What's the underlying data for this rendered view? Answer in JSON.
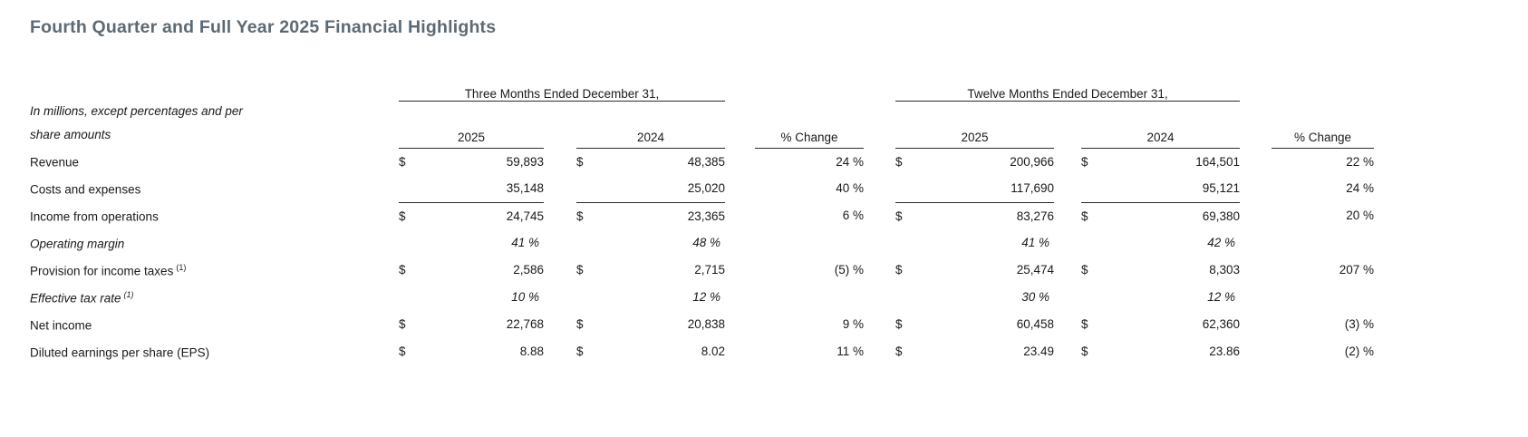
{
  "title": "Fourth Quarter and Full Year 2025 Financial Highlights",
  "table": {
    "units_note_line1": "In millions, except percentages and per",
    "units_note_line2": "share amounts",
    "group_headers": [
      "Three Months Ended December 31,",
      "Twelve Months Ended December 31,"
    ],
    "year_headers": [
      "2025",
      "2024"
    ],
    "pct_change_header": "% Change",
    "rows": [
      {
        "label": "Revenue",
        "sup": "",
        "italic": false,
        "rule_below": false,
        "cells": {
          "q25_cur": "$",
          "q25": "59,893",
          "q24_cur": "$",
          "q24": "48,385",
          "q_chg": "24 %",
          "y25_cur": "$",
          "y25": "200,966",
          "y24_cur": "$",
          "y24": "164,501",
          "y_chg": "22 %"
        }
      },
      {
        "label": "Costs and expenses",
        "sup": "",
        "italic": false,
        "rule_below": true,
        "cells": {
          "q25_cur": "",
          "q25": "35,148",
          "q24_cur": "",
          "q24": "25,020",
          "q_chg": "40 %",
          "y25_cur": "",
          "y25": "117,690",
          "y24_cur": "",
          "y24": "95,121",
          "y_chg": "24 %"
        }
      },
      {
        "label": "Income from operations",
        "sup": "",
        "italic": false,
        "rule_below": false,
        "cells": {
          "q25_cur": "$",
          "q25": "24,745",
          "q24_cur": "$",
          "q24": "23,365",
          "q_chg": "6 %",
          "y25_cur": "$",
          "y25": "83,276",
          "y24_cur": "$",
          "y24": "69,380",
          "y_chg": "20 %"
        }
      },
      {
        "label": "Operating margin",
        "sup": "",
        "italic": true,
        "rule_below": false,
        "cells": {
          "q25_cur": "",
          "q25": "41 %",
          "q24_cur": "",
          "q24": "48 %",
          "q_chg": "",
          "y25_cur": "",
          "y25": "41 %",
          "y24_cur": "",
          "y24": "42 %",
          "y_chg": ""
        }
      },
      {
        "label": "Provision for income taxes",
        "sup": "(1)",
        "italic": false,
        "rule_below": false,
        "cells": {
          "q25_cur": "$",
          "q25": "2,586",
          "q24_cur": "$",
          "q24": "2,715",
          "q_chg": "(5) %",
          "y25_cur": "$",
          "y25": "25,474",
          "y24_cur": "$",
          "y24": "8,303",
          "y_chg": "207 %"
        }
      },
      {
        "label": "Effective tax rate",
        "sup": "(1)",
        "italic": true,
        "rule_below": false,
        "cells": {
          "q25_cur": "",
          "q25": "10 %",
          "q24_cur": "",
          "q24": "12 %",
          "q_chg": "",
          "y25_cur": "",
          "y25": "30 %",
          "y24_cur": "",
          "y24": "12 %",
          "y_chg": ""
        }
      },
      {
        "label": "Net income",
        "sup": "",
        "italic": false,
        "rule_below": false,
        "cells": {
          "q25_cur": "$",
          "q25": "22,768",
          "q24_cur": "$",
          "q24": "20,838",
          "q_chg": "9 %",
          "y25_cur": "$",
          "y25": "60,458",
          "y24_cur": "$",
          "y24": "62,360",
          "y_chg": "(3) %"
        }
      },
      {
        "label": "Diluted earnings per share (EPS)",
        "sup": "",
        "italic": false,
        "rule_below": false,
        "cells": {
          "q25_cur": "$",
          "q25": "8.88",
          "q24_cur": "$",
          "q24": "8.02",
          "q_chg": "11 %",
          "y25_cur": "$",
          "y25": "23.49",
          "y24_cur": "$",
          "y24": "23.86",
          "y_chg": "(2) %"
        }
      }
    ]
  },
  "colors": {
    "title_text": "#5d6a74",
    "body_text": "#1a1a1a",
    "rule_line": "#2b2b2b",
    "background": "#ffffff"
  }
}
